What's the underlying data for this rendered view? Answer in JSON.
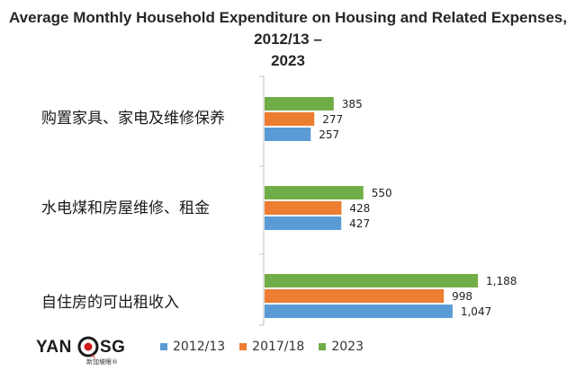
{
  "chart_data": {
    "type": "bar",
    "orientation": "horizontal",
    "title_line1": "Average Monthly Household Expenditure on Housing and Related Expenses, 2012/13 –",
    "title_line2": "2023",
    "categories": [
      "购置家具、家电及维修保养",
      "水电煤和房屋维修、租金",
      "自住房的可出租收入"
    ],
    "series": [
      {
        "name": "2012/13",
        "color": "#5B9BD5",
        "values": [
          257,
          427,
          1047
        ],
        "labels": [
          "257",
          "427",
          "1,047"
        ]
      },
      {
        "name": "2017/18",
        "color": "#ED7D31",
        "values": [
          277,
          428,
          998
        ],
        "labels": [
          "277",
          "428",
          "998"
        ]
      },
      {
        "name": "2023",
        "color": "#70AD47",
        "values": [
          385,
          550,
          1188
        ],
        "labels": [
          "385",
          "550",
          "1,188"
        ]
      }
    ],
    "xlim": [
      0,
      1300
    ],
    "grid": false,
    "legend_position": "bottom"
  },
  "logo": {
    "left": "YAN",
    "right": "SG",
    "sub": "新加坡眼®"
  }
}
